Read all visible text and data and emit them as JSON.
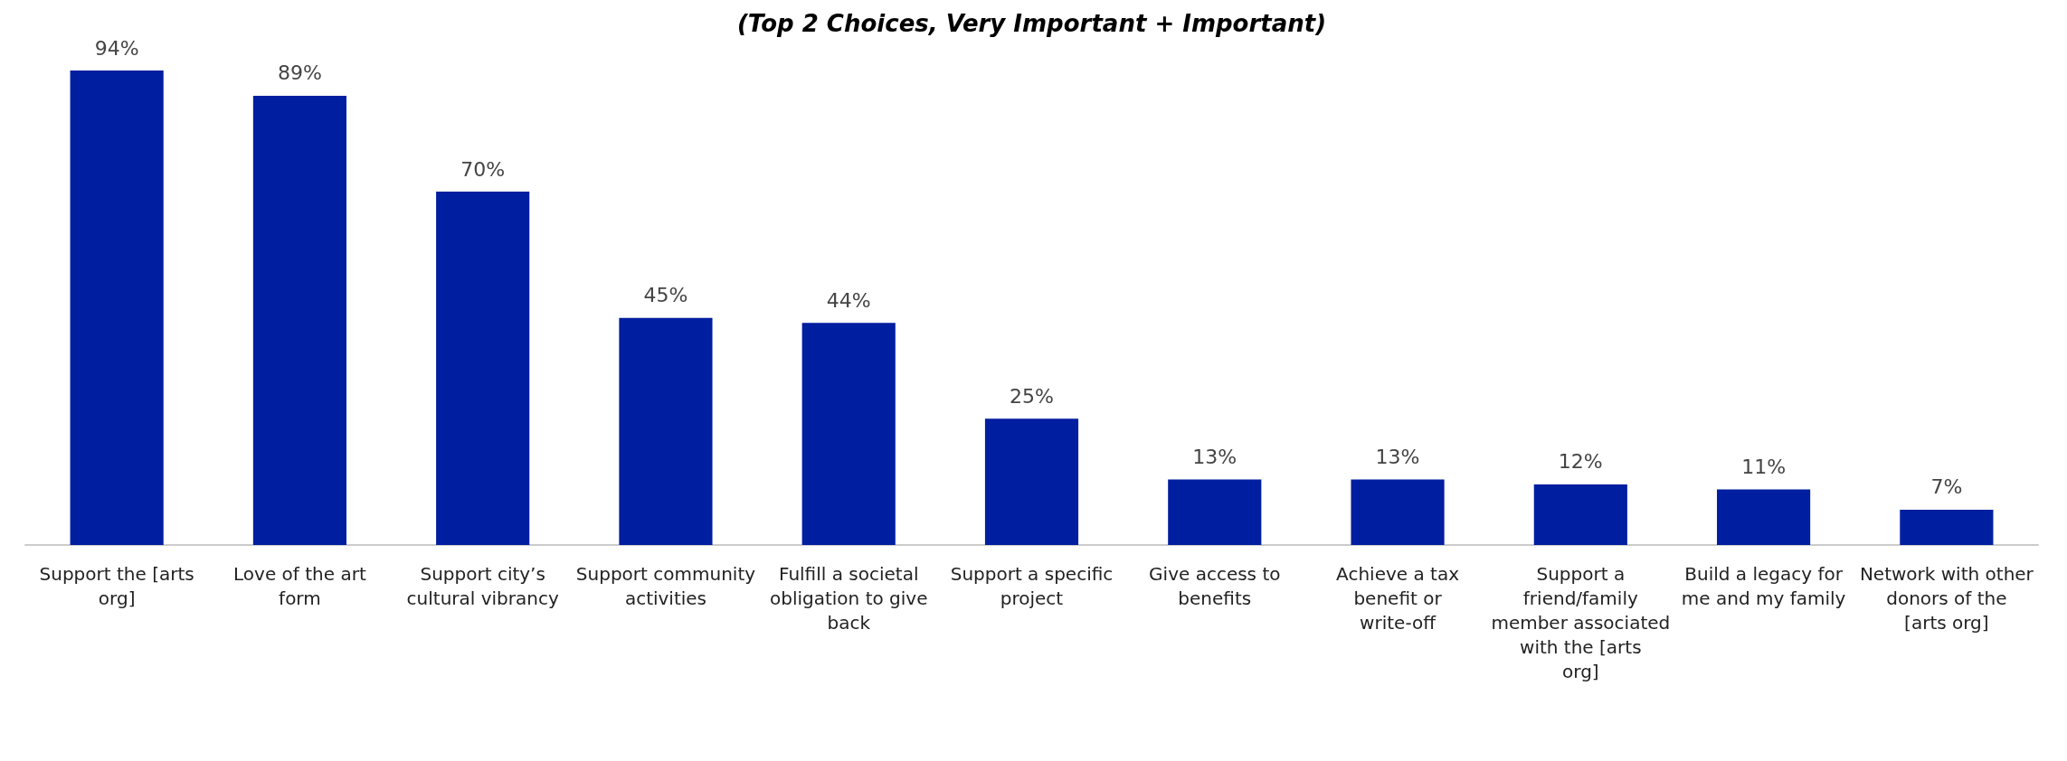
{
  "chart_data": {
    "type": "bar",
    "subtitle": "(Top 2 Choices, Very Important + Important)",
    "categories": [
      "Support the [arts org]",
      "Love of the art form",
      "Support city’s cultural vibrancy",
      "Support community activities",
      "Fulfill a societal obligation to give back",
      "Support a specific project",
      "Give access to benefits",
      "Achieve a tax benefit or write-off",
      "Support a friend/family member associated with the [arts org]",
      "Build a legacy for me and my family",
      "Network with other donors of the [arts org]"
    ],
    "values": [
      94,
      89,
      70,
      45,
      44,
      25,
      13,
      13,
      12,
      11,
      7
    ],
    "value_labels": [
      "94%",
      "89%",
      "70%",
      "45%",
      "44%",
      "25%",
      "13%",
      "13%",
      "12%",
      "11%",
      "7%"
    ],
    "color": "#001ea0"
  }
}
